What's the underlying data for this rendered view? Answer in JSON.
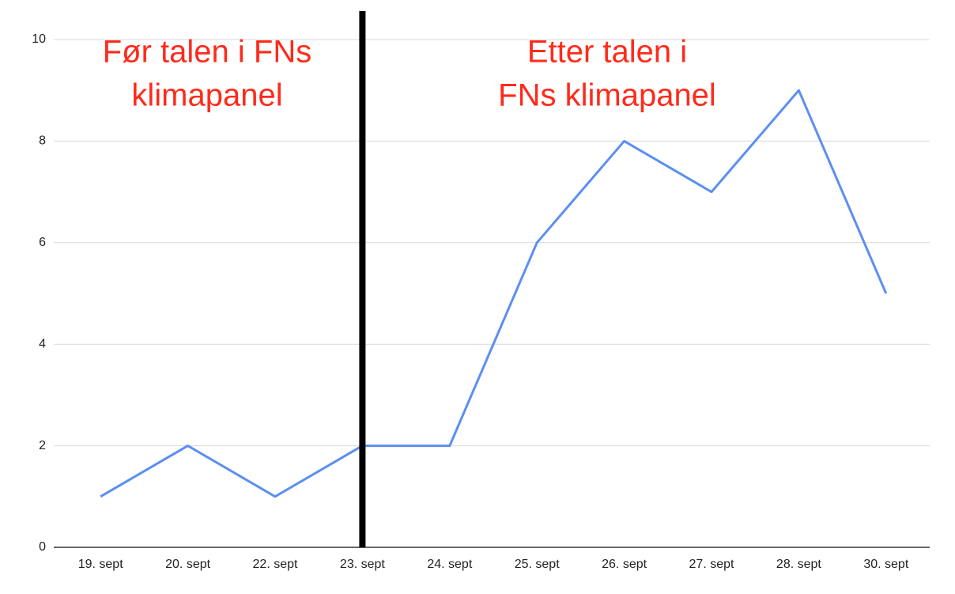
{
  "chart_data": {
    "type": "line",
    "categories": [
      "19. sept",
      "20. sept",
      "22. sept",
      "23. sept",
      "24. sept",
      "25. sept",
      "26. sept",
      "27. sept",
      "28. sept",
      "30. sept"
    ],
    "values": [
      1,
      2,
      1,
      2,
      2,
      6,
      8,
      7,
      9,
      5
    ],
    "color": "#5b8ff0",
    "ylim": [
      0,
      10
    ],
    "yticks": [
      0,
      2,
      4,
      6,
      8,
      10
    ],
    "grid": true,
    "annotations": [
      {
        "lines": [
          "Før talen i FNs",
          "klimapanel"
        ]
      },
      {
        "lines": [
          "Etter talen i",
          "FNs klimapanel"
        ]
      }
    ]
  }
}
